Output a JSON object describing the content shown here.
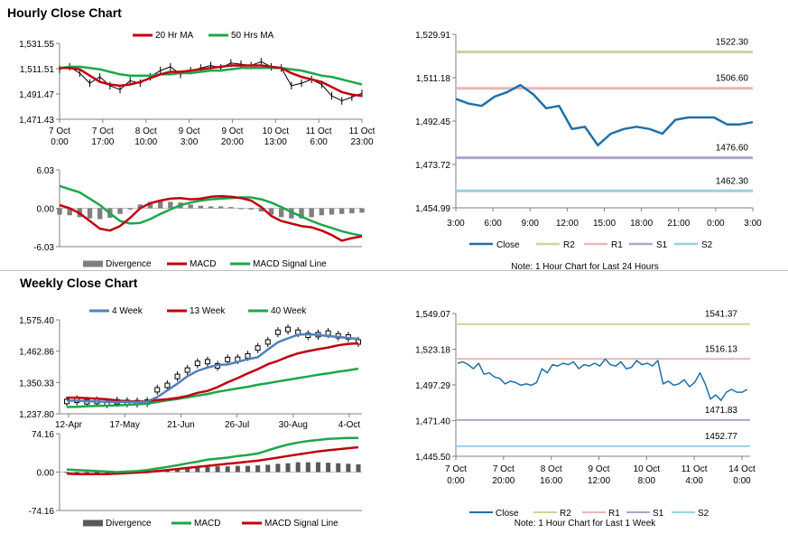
{
  "sections": {
    "hourly_title": "Hourly Close Chart",
    "weekly_title": "Weekly Close Chart"
  },
  "colors": {
    "ma_short": "#c0000f",
    "ma_long": "#1ea64b",
    "price": "#000000",
    "close": "#1f6faa",
    "r2": "#c5d89b",
    "r1": "#e6b7b7",
    "s1": "#b2a3c9",
    "s2": "#9ccfe3",
    "divergence": "#808080",
    "week4": "#4f81bd"
  },
  "chart_data": [
    {
      "id": "hourly_price",
      "type": "line",
      "legend": [
        "20 Hr MA",
        "50 Hrs MA"
      ],
      "yticks": [
        "1,531.55",
        "1,511.51",
        "1,491.47",
        "1,471.43"
      ],
      "ylim": [
        1471.43,
        1531.55
      ],
      "xticks": [
        [
          "7 Oct",
          "0:00"
        ],
        [
          "7 Oct",
          "17:00"
        ],
        [
          "8 Oct",
          "10:00"
        ],
        [
          "9 Oct",
          "3:00"
        ],
        [
          "9 Oct",
          "20:00"
        ],
        [
          "10 Oct",
          "13:00"
        ],
        [
          "11 Oct",
          "6:00"
        ],
        [
          "11 Oct",
          "23:00"
        ]
      ],
      "price": [
        1511,
        1513,
        1508,
        1500,
        1505,
        1498,
        1495,
        1502,
        1500,
        1505,
        1510,
        1513,
        1507,
        1510,
        1512,
        1514,
        1512,
        1516,
        1515,
        1514,
        1517,
        1513,
        1512,
        1498,
        1500,
        1503,
        1499,
        1490,
        1486,
        1489,
        1492
      ],
      "ma20": [
        1512,
        1512,
        1511,
        1506,
        1501,
        1499,
        1498,
        1499,
        1501,
        1504,
        1507,
        1509,
        1509,
        1510,
        1511,
        1512,
        1513,
        1514,
        1514,
        1514,
        1514,
        1513,
        1512,
        1508,
        1505,
        1503,
        1501,
        1497,
        1493,
        1491,
        1490
      ],
      "ma50": [
        1512,
        1513,
        1513,
        1512,
        1511,
        1509,
        1507,
        1506,
        1506,
        1506,
        1507,
        1507,
        1508,
        1508,
        1509,
        1510,
        1510,
        1511,
        1512,
        1512,
        1512,
        1512,
        1512,
        1511,
        1510,
        1508,
        1506,
        1505,
        1503,
        1501,
        1499
      ]
    },
    {
      "id": "hourly_macd",
      "type": "line",
      "legend": [
        "Divergence",
        "MACD",
        "MACD Signal Line"
      ],
      "yticks": [
        "6.03",
        "0.00",
        "-6.03"
      ],
      "ylim": [
        -6.03,
        6.03
      ],
      "macd": [
        0.5,
        0,
        -0.8,
        -2,
        -3.2,
        -3.5,
        -2.8,
        -1.5,
        0,
        0.8,
        1.2,
        1.5,
        1.6,
        1.4,
        1.5,
        1.8,
        1.9,
        1.8,
        1.6,
        1.2,
        0.2,
        -1.2,
        -2,
        -2.4,
        -2.8,
        -3,
        -3.5,
        -4.2,
        -5.1,
        -4.7,
        -4.4
      ],
      "signal": [
        3.5,
        3,
        2.5,
        1.5,
        0.5,
        -0.8,
        -2,
        -2.4,
        -2.3,
        -1.7,
        -0.9,
        -0.2,
        0.5,
        0.9,
        1.2,
        1.4,
        1.5,
        1.6,
        1.7,
        1.7,
        1.4,
        0.9,
        0.2,
        -0.6,
        -1.3,
        -2,
        -2.6,
        -3.1,
        -3.6,
        -4,
        -4.3
      ],
      "divergence": [
        -1,
        -1.1,
        -1.4,
        -1.6,
        -1.7,
        -1.5,
        -0.9,
        -0.2,
        0.6,
        1,
        1.1,
        1,
        0.9,
        0.6,
        0.4,
        0.3,
        0.3,
        0.2,
        0,
        -0.2,
        -0.5,
        -1,
        -1.4,
        -1.6,
        -1.6,
        -1.4,
        -1.1,
        -1,
        -0.9,
        -0.8,
        -0.7
      ]
    },
    {
      "id": "hourly_close",
      "type": "line",
      "yticks": [
        "1,529.91",
        "1,511.18",
        "1,492.45",
        "1,473.72",
        "1,454.99"
      ],
      "ylim": [
        1454.99,
        1529.91
      ],
      "xticks": [
        "3:00",
        "6:00",
        "9:00",
        "12:00",
        "15:00",
        "18:00",
        "21:00",
        "0:00",
        "3:00"
      ],
      "levels": [
        {
          "name": "R2",
          "value": 1522.3,
          "label": "1522.30"
        },
        {
          "name": "R1",
          "value": 1506.6,
          "label": "1506.60"
        },
        {
          "name": "S1",
          "value": 1476.6,
          "label": "1476.60"
        },
        {
          "name": "S2",
          "value": 1462.3,
          "label": "1462.30"
        }
      ],
      "close": [
        1502,
        1500,
        1499,
        1503,
        1505,
        1508,
        1504,
        1498,
        1499,
        1489,
        1490,
        1482,
        1487,
        1489,
        1490,
        1489,
        1487,
        1493,
        1494,
        1494,
        1494,
        1491,
        1491,
        1492
      ],
      "legend": [
        "Close",
        "R2",
        "R1",
        "S1",
        "S2"
      ],
      "note": "Note: 1 Hour Chart for Last 24 Hours"
    },
    {
      "id": "weekly_price",
      "type": "line",
      "legend": [
        "4 Week",
        "13 Week",
        "40 Week"
      ],
      "yticks": [
        "1,575.40",
        "1,462.86",
        "1,350.33",
        "1,237.80"
      ],
      "ylim": [
        1237.8,
        1575.4
      ],
      "xticks": [
        "12-Apr",
        "17-May",
        "21-Jun",
        "26-Jul",
        "30-Aug",
        "4-Oct"
      ],
      "price": [
        1282,
        1286,
        1281,
        1282,
        1276,
        1281,
        1279,
        1278,
        1280,
        1324,
        1340,
        1372,
        1395,
        1419,
        1425,
        1410,
        1433,
        1434,
        1446,
        1474,
        1496,
        1531,
        1541,
        1531,
        1520,
        1522,
        1528,
        1518,
        1514,
        1496
      ],
      "w4": [
        1285,
        1285,
        1283,
        1282,
        1281,
        1280,
        1281,
        1280,
        1282,
        1298,
        1322,
        1346,
        1373,
        1392,
        1404,
        1413,
        1415,
        1424,
        1434,
        1441,
        1469,
        1495,
        1509,
        1522,
        1524,
        1521,
        1517,
        1514,
        1510,
        1507
      ],
      "w13": [
        1296,
        1296,
        1294,
        1292,
        1290,
        1286,
        1283,
        1282,
        1283,
        1287,
        1290,
        1295,
        1302,
        1313,
        1320,
        1334,
        1351,
        1366,
        1383,
        1398,
        1416,
        1428,
        1443,
        1455,
        1463,
        1470,
        1476,
        1484,
        1489,
        1491
      ],
      "w40": [
        1262,
        1263,
        1265,
        1266,
        1267,
        1268,
        1270,
        1272,
        1274,
        1280,
        1286,
        1291,
        1297,
        1303,
        1309,
        1317,
        1323,
        1329,
        1335,
        1342,
        1348,
        1354,
        1360,
        1366,
        1372,
        1378,
        1383,
        1389,
        1394,
        1400
      ]
    },
    {
      "id": "weekly_macd",
      "type": "line",
      "legend": [
        "Divergence",
        "MACD",
        "MACD Signal Line"
      ],
      "yticks": [
        "74.16",
        "0.00",
        "-74.16"
      ],
      "ylim": [
        -74.16,
        74.16
      ],
      "macd": [
        5,
        4,
        3,
        2,
        1,
        0,
        1,
        2,
        4,
        7,
        10,
        13,
        17,
        20,
        24,
        26,
        28,
        31,
        33,
        36,
        42,
        48,
        53,
        57,
        60,
        62,
        64,
        65,
        66,
        66
      ],
      "signal": [
        -3,
        -4,
        -4,
        -4,
        -4,
        -3,
        -2,
        -1,
        0,
        2,
        4,
        6,
        8,
        10,
        12,
        14,
        16,
        18,
        20,
        22,
        25,
        28,
        31,
        34,
        37,
        40,
        42,
        44,
        46,
        48
      ],
      "divergence": [
        0,
        0,
        0,
        0,
        0,
        0,
        1,
        2,
        3,
        4,
        5,
        6,
        8,
        9,
        10,
        11,
        11,
        12,
        12,
        13,
        14,
        16,
        17,
        19,
        19,
        19,
        18,
        17,
        16,
        15
      ]
    },
    {
      "id": "weekly_close",
      "type": "line",
      "yticks": [
        "1,549.07",
        "1,523.18",
        "1,497.29",
        "1,471.40",
        "1,445.50"
      ],
      "ylim": [
        1445.5,
        1549.07
      ],
      "xticks": [
        [
          "7 Oct",
          "0:00"
        ],
        [
          "7 Oct",
          "20:00"
        ],
        [
          "8 Oct",
          "16:00"
        ],
        [
          "9 Oct",
          "12:00"
        ],
        [
          "10 Oct",
          "8:00"
        ],
        [
          "11 Oct",
          "4:00"
        ],
        [
          "14 Oct",
          "0:00"
        ]
      ],
      "levels": [
        {
          "name": "R2",
          "value": 1541.37,
          "label": "1541.37"
        },
        {
          "name": "R1",
          "value": 1516.13,
          "label": "1516.13"
        },
        {
          "name": "S1",
          "value": 1471.83,
          "label": "1471.83"
        },
        {
          "name": "S2",
          "value": 1452.77,
          "label": "1452.77"
        }
      ],
      "close": [
        1513,
        1514,
        1512,
        1509,
        1513,
        1505,
        1506,
        1503,
        1502,
        1498,
        1500,
        1499,
        1497,
        1498,
        1497,
        1499,
        1509,
        1506,
        1512,
        1511,
        1513,
        1512,
        1514,
        1509,
        1512,
        1511,
        1513,
        1511,
        1516,
        1512,
        1511,
        1514,
        1509,
        1510,
        1515,
        1512,
        1513,
        1511,
        1515,
        1498,
        1500,
        1497,
        1498,
        1501,
        1496,
        1499,
        1506,
        1498,
        1487,
        1490,
        1486,
        1492,
        1494,
        1492,
        1492,
        1494
      ],
      "legend": [
        "Close",
        "R2",
        "R1",
        "S1",
        "S2"
      ],
      "note": "Note: 1 Hour Chart for Last 1 Week"
    }
  ]
}
